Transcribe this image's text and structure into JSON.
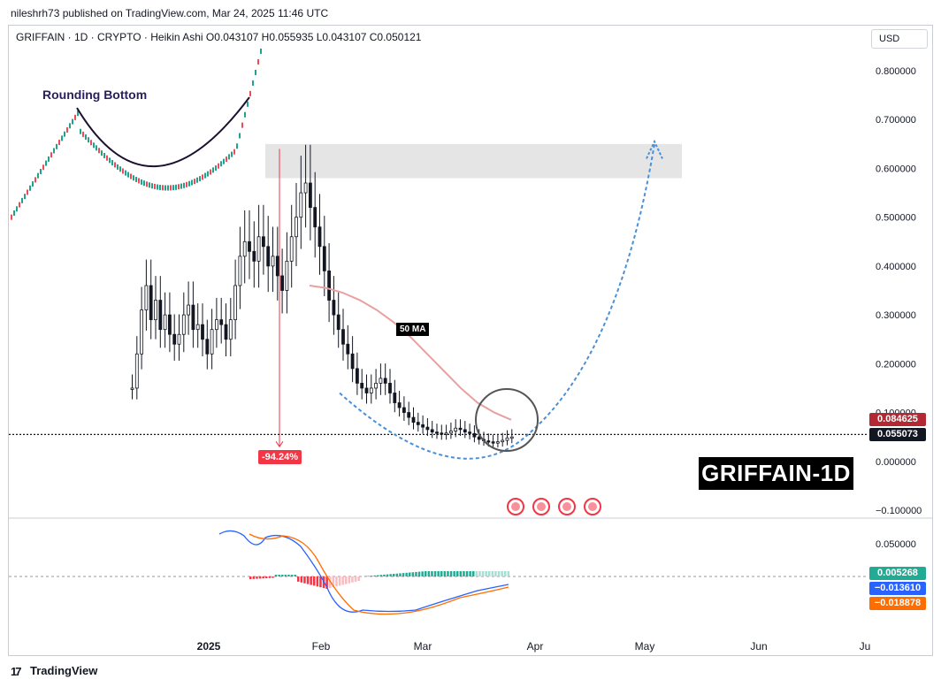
{
  "header": {
    "publisher": "nileshrh73 published on TradingView.com, Mar 24, 2025 11:46 UTC",
    "symbol_line": "GRIFFAIN · 1D · CRYPTO · Heikin Ashi   O0.043107   H0.055935   L0.043107   C0.050121",
    "currency": "USD"
  },
  "footer": {
    "brand": "TradingView"
  },
  "chart_data": [
    {
      "type": "candlestick",
      "title": "GRIFFAIN-1D",
      "x_ticks": [
        "2025",
        "Feb",
        "Mar",
        "Apr",
        "May",
        "Jun",
        "Ju"
      ],
      "y_ticks": [
        "0.800000",
        "0.700000",
        "0.600000",
        "0.500000",
        "0.400000",
        "0.300000",
        "0.200000",
        "0.100000",
        "0.000000",
        "−0.100000"
      ],
      "ylim": [
        -0.1,
        0.8
      ],
      "price_tags": [
        {
          "label": "0.084625",
          "color": "#b22833"
        },
        {
          "label": "0.055073",
          "color": "#131722"
        }
      ],
      "close_series": [
        0.15,
        0.22,
        0.31,
        0.36,
        0.29,
        0.33,
        0.27,
        0.3,
        0.26,
        0.24,
        0.26,
        0.3,
        0.32,
        0.27,
        0.28,
        0.25,
        0.22,
        0.27,
        0.29,
        0.28,
        0.25,
        0.29,
        0.36,
        0.42,
        0.45,
        0.43,
        0.41,
        0.46,
        0.44,
        0.4,
        0.42,
        0.38,
        0.35,
        0.41,
        0.46,
        0.5,
        0.55,
        0.57,
        0.52,
        0.48,
        0.44,
        0.39,
        0.33,
        0.3,
        0.27,
        0.24,
        0.22,
        0.19,
        0.16,
        0.15,
        0.14,
        0.15,
        0.16,
        0.17,
        0.16,
        0.14,
        0.12,
        0.11,
        0.1,
        0.09,
        0.08,
        0.075,
        0.07,
        0.065,
        0.06,
        0.058,
        0.056,
        0.058,
        0.062,
        0.068,
        0.065,
        0.06,
        0.057,
        0.05,
        0.045,
        0.042,
        0.04,
        0.038,
        0.04,
        0.043,
        0.048,
        0.05
      ],
      "ma50": {
        "name": "50 MA",
        "values": [
          0.36,
          0.355,
          0.345,
          0.33,
          0.31,
          0.285,
          0.255,
          0.22,
          0.185,
          0.15,
          0.12,
          0.1,
          0.085
        ]
      },
      "annotations": {
        "drop_pct": "-94.24%",
        "resistance_zone": [
          0.58,
          0.65
        ],
        "projection_target": 0.65,
        "inset_label": "Rounding Bottom",
        "events": 4
      }
    },
    {
      "type": "line",
      "name": "MACD",
      "y_ticks": [
        "0.050000"
      ],
      "values_tags": [
        {
          "label": "0.005268",
          "color": "#22ab94"
        },
        {
          "label": "−0.013610",
          "color": "#2962ff"
        },
        {
          "label": "−0.018878",
          "color": "#ff6d00"
        }
      ]
    }
  ]
}
